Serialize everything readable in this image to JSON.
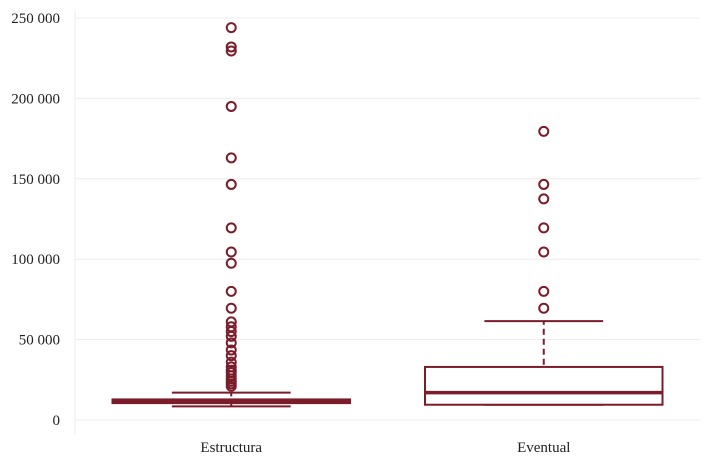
{
  "chart_data": {
    "type": "boxplot",
    "title": "",
    "xlabel": "",
    "ylabel": "",
    "ylim": [
      0,
      250000
    ],
    "yticks": [
      0,
      50000,
      100000,
      150000,
      200000,
      250000
    ],
    "ytick_labels": [
      "0",
      "50 000",
      "100 000",
      "150 000",
      "200 000",
      "250 000"
    ],
    "grid": true,
    "color": "#7b1c2a",
    "categories": [
      "Estructura",
      "Eventual"
    ],
    "boxes": [
      {
        "name": "Estructura",
        "whisker_low": 8500,
        "q1": 10500,
        "median": 11500,
        "q3": 12800,
        "whisker_high": 17000,
        "outliers": [
          21000,
          22500,
          24000,
          25500,
          27500,
          29500,
          31000,
          33000,
          36000,
          40000,
          43500,
          48000,
          52000,
          55000,
          58000,
          61000,
          69500,
          80000,
          97500,
          104500,
          119500,
          146500,
          163000,
          195000,
          229500,
          232000,
          244000
        ]
      },
      {
        "name": "Eventual",
        "whisker_low": 9500,
        "q1": 9500,
        "median": 17000,
        "q3": 33000,
        "whisker_high": 61500,
        "outliers": [
          69500,
          80000,
          104500,
          119500,
          137500,
          146500,
          179500
        ]
      }
    ]
  }
}
